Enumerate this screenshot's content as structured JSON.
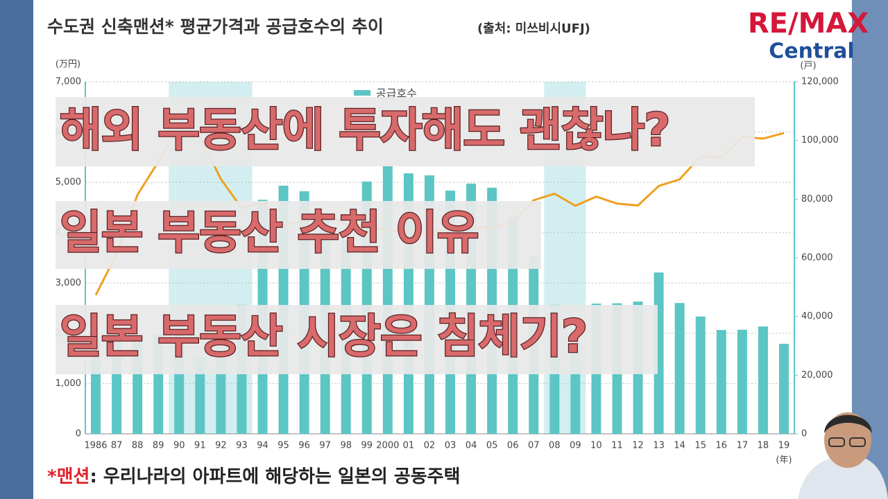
{
  "chart_data": {
    "type": "bar",
    "title": "수도권 신축맨션* 평균가격과 공급호수의 추이",
    "subtitle": "(출처: 미쓰비시UFJ)",
    "y_label": "(万円)",
    "y2_label": "(戸)",
    "x_label": "(年)",
    "categories": [
      "1986",
      "87",
      "88",
      "89",
      "90",
      "91",
      "92",
      "93",
      "94",
      "95",
      "96",
      "97",
      "98",
      "99",
      "2000",
      "01",
      "02",
      "03",
      "04",
      "05",
      "06",
      "07",
      "08",
      "09",
      "10",
      "11",
      "12",
      "13",
      "14",
      "15",
      "16",
      "17",
      "18",
      "19"
    ],
    "series": [
      {
        "name": "공급호수",
        "type": "bar",
        "axis": "y2",
        "color": "#5cc6c4",
        "values": [
          33000,
          35000,
          32000,
          34000,
          35000,
          26000,
          28000,
          44000,
          79800,
          84600,
          82700,
          75000,
          66000,
          86000,
          91200,
          88800,
          88100,
          82900,
          85300,
          83900,
          74000,
          60500,
          44000,
          36000,
          44400,
          44500,
          45100,
          55000,
          44600,
          40000,
          35400,
          35500,
          36600,
          30700
        ]
      },
      {
        "type": "line",
        "color": "#f0a020",
        "values": [
          2758,
          3579,
          4753,
          5411,
          6123,
          5900,
          5066,
          4488,
          4609,
          4148,
          4238,
          4374,
          4168,
          4138,
          4034,
          4026,
          4003,
          4069,
          4104,
          4108,
          4200,
          4644,
          4775,
          4535,
          4716,
          4578,
          4540,
          4929,
          5060,
          5518,
          5490,
          5908,
          5871,
          5980
        ]
      }
    ],
    "ylim": [
      0,
      7000
    ],
    "yticks": [
      0,
      {
        "value": 1000,
        "label": "1,000"
      },
      {
        "value": 2000,
        "label": "2,000"
      },
      {
        "value": 3000,
        "label": "3,000"
      },
      {
        "value": 4000,
        "label": "4,000"
      },
      {
        "value": 5000,
        "label": "5,000"
      },
      {
        "value": 6000,
        "label": "6,000"
      },
      {
        "value": 7000,
        "label": "7,000"
      }
    ],
    "y2lim": [
      0,
      120000
    ],
    "y2ticks": [
      0,
      {
        "value": 20000,
        "label": "20,000"
      },
      {
        "value": 40000,
        "label": "40,000"
      },
      {
        "value": 60000,
        "label": "60,000"
      },
      {
        "value": 80000,
        "label": "80,000"
      },
      {
        "value": 100000,
        "label": "100,000"
      },
      {
        "value": 120000,
        "label": "120,000"
      }
    ],
    "grid": true,
    "highlight_ranges": [
      [
        "90",
        "93"
      ],
      [
        "08",
        "09"
      ]
    ],
    "footnote": {
      "mark": "*맨션",
      "text": ": 우리나라의 아파트에 해당하는 일본의 공동주택"
    }
  },
  "overlay": [
    "해외 부동산에 투자해도 괜찮나?",
    "일본 부동산 추천 이유",
    "일본 부동산 시장은 침체기?"
  ],
  "logo": {
    "brand": "RE/MAX",
    "office": "Central"
  }
}
